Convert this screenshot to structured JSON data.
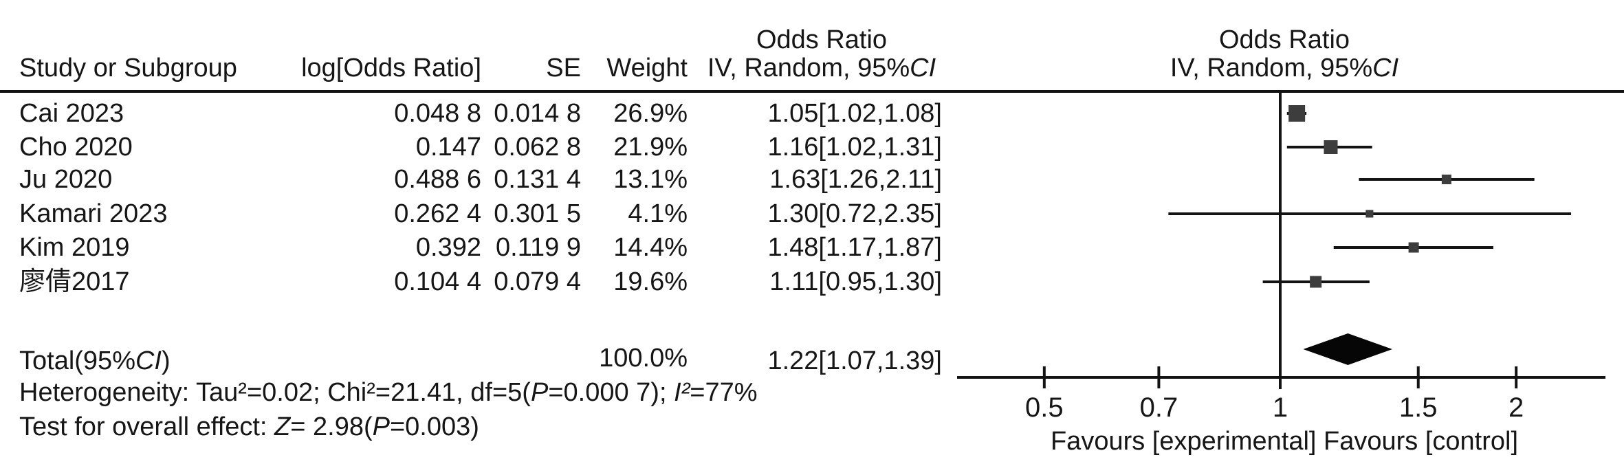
{
  "figure": {
    "columns": {
      "study": "Study or Subgroup",
      "log_or": "log[Odds Ratio]",
      "se": "SE",
      "weight": "Weight",
      "effect_line1": "Odds Ratio",
      "effect_line2_prefix": "IV, Random, 95%",
      "effect_line2_ci": "CI"
    },
    "plot_header": {
      "line1": "Odds Ratio",
      "line2_prefix": "IV, Random, 95%",
      "line2_ci": "CI"
    },
    "total_row": {
      "label_prefix": "Total(95%",
      "label_ci": "CI",
      "label_suffix": ")",
      "weight": "100.0%",
      "or_ci": "1.22[1.07,1.39]"
    },
    "heterogeneity": {
      "prefix": "Heterogeneity: Tau²=0.02; Chi²=21.41, df=5(",
      "p": "P",
      "mid": "=0.000 7); ",
      "i2": "I²",
      "suffix": "=77%"
    },
    "overall_effect": {
      "prefix": "Test for overall effect: ",
      "z": "Z",
      "mid": "= 2.98(",
      "p": "P",
      "suffix": "=0.003)"
    },
    "favours_label": "Favours [experimental] Favours [control]"
  },
  "chart_data": {
    "type": "forest",
    "x_scale": "log10",
    "axis_tick_labels": [
      "0.5",
      "0.7",
      "1",
      "1.5",
      "2"
    ],
    "axis_tick_values": [
      0.5,
      0.7,
      1,
      1.5,
      2
    ],
    "no_effect_line": 1,
    "studies": [
      {
        "study": "Cai 2023",
        "log_or": "0.048 8",
        "se": "0.014 8",
        "weight": "26.9%",
        "or_ci": "1.05[1.02,1.08]",
        "or": 1.05,
        "low": 1.02,
        "high": 1.08,
        "square": 24
      },
      {
        "study": "Cho 2020",
        "log_or": "0.147",
        "se": "0.062 8",
        "weight": "21.9%",
        "or_ci": "1.16[1.02,1.31]",
        "or": 1.16,
        "low": 1.02,
        "high": 1.31,
        "square": 20
      },
      {
        "study": "Ju 2020",
        "log_or": "0.488 6",
        "se": "0.131 4",
        "weight": "13.1%",
        "or_ci": "1.63[1.26,2.11]",
        "or": 1.63,
        "low": 1.26,
        "high": 2.11,
        "square": 14
      },
      {
        "study": "Kamari 2023",
        "log_or": "0.262 4",
        "se": "0.301 5",
        "weight": "4.1%",
        "or_ci": "1.30[0.72,2.35]",
        "or": 1.3,
        "low": 0.72,
        "high": 2.35,
        "square": 11
      },
      {
        "study": "Kim 2019",
        "log_or": "0.392",
        "se": "0.119 9",
        "weight": "14.4%",
        "or_ci": "1.48[1.17,1.87]",
        "or": 1.48,
        "low": 1.17,
        "high": 1.87,
        "square": 15
      },
      {
        "study": "廖倩2017",
        "log_or": "0.104 4",
        "se": "0.079 4",
        "weight": "19.6%",
        "or_ci": "1.11[0.95,1.30]",
        "or": 1.11,
        "low": 0.95,
        "high": 1.3,
        "square": 17
      }
    ],
    "total": {
      "or": 1.22,
      "low": 1.07,
      "high": 1.39
    },
    "heterogeneity_stats": {
      "tau2": 0.02,
      "chi2": 21.41,
      "df": 5,
      "p": "0.000 7",
      "i2_pct": 77
    },
    "overall_effect_stats": {
      "z": 2.98,
      "p": 0.003
    },
    "colors": {
      "square": "#3d3d3d",
      "line": "#131313",
      "diamond": "#060606",
      "text": "#161616"
    }
  }
}
